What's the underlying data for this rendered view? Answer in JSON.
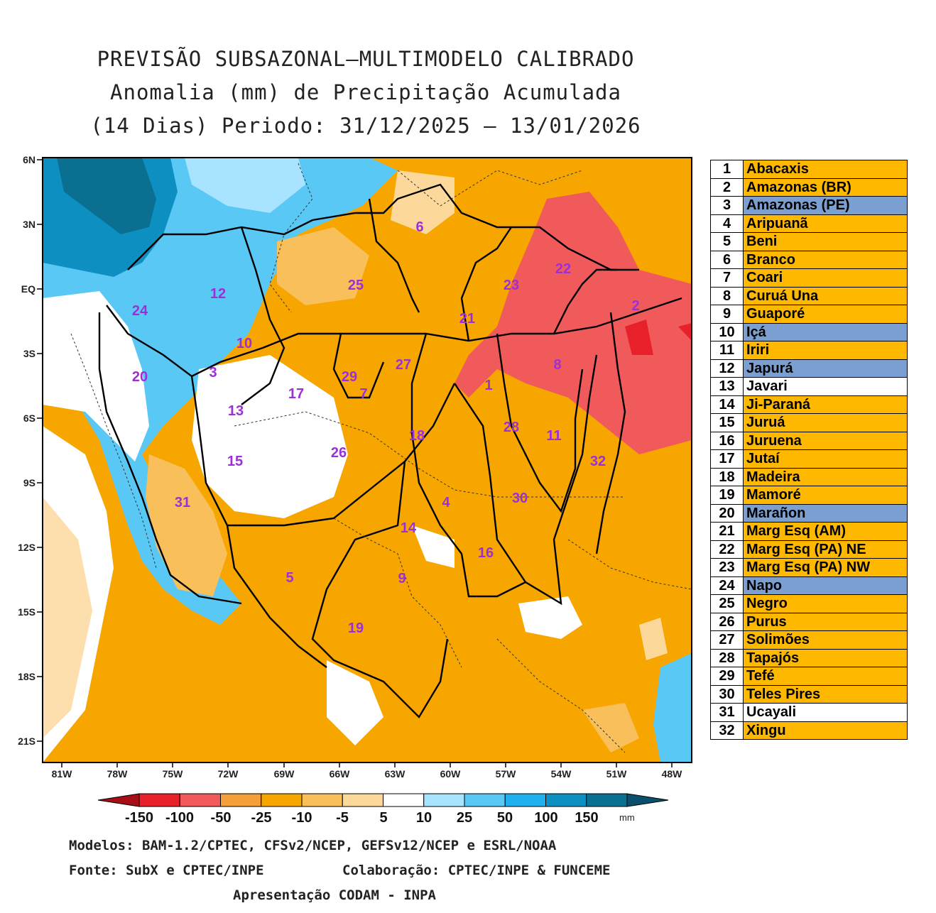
{
  "title": {
    "line1": "PREVISÃO SUBSAZONAL—MULTIMODELO CALIBRADO",
    "line2": "Anomalia (mm) de Precipitação Acumulada",
    "line3": "(14 Dias) Periodo: 31/12/2025 — 13/01/2026"
  },
  "axes": {
    "lat_labels": [
      "6N",
      "3N",
      "EQ",
      "3S",
      "6S",
      "9S",
      "12S",
      "15S",
      "18S",
      "21S"
    ],
    "lon_labels": [
      "81W",
      "78W",
      "75W",
      "72W",
      "69W",
      "66W",
      "63W",
      "60W",
      "57W",
      "54W",
      "51W",
      "48W"
    ]
  },
  "colorbar": {
    "labels": [
      "-150",
      "-100",
      "-50",
      "-25",
      "-10",
      "-5",
      "5",
      "10",
      "25",
      "50",
      "100",
      "150"
    ],
    "unit": "mm",
    "colors": [
      "#a50f15",
      "#e8202a",
      "#f05a5a",
      "#f59e3c",
      "#f7a600",
      "#f9bf5a",
      "#fcd89a",
      "#ffffff",
      "#a8e4ff",
      "#5ac8f5",
      "#1eb0f0",
      "#0d8fc2",
      "#0b6f92",
      "#0a4f6b"
    ]
  },
  "basins": [
    {
      "num": "1",
      "name": "Abacaxis",
      "color": "#ffb800"
    },
    {
      "num": "2",
      "name": "Amazonas (BR)",
      "color": "#ffb800"
    },
    {
      "num": "3",
      "name": "Amazonas (PE)",
      "color": "#7a9fd0"
    },
    {
      "num": "4",
      "name": "Aripuanã",
      "color": "#ffb800"
    },
    {
      "num": "5",
      "name": "Beni",
      "color": "#ffb800"
    },
    {
      "num": "6",
      "name": "Branco",
      "color": "#ffb800"
    },
    {
      "num": "7",
      "name": "Coari",
      "color": "#ffb800"
    },
    {
      "num": "8",
      "name": "Curuá Una",
      "color": "#ffb800"
    },
    {
      "num": "9",
      "name": "Guaporé",
      "color": "#ffb800"
    },
    {
      "num": "10",
      "name": "Içá",
      "color": "#7a9fd0"
    },
    {
      "num": "11",
      "name": "Iriri",
      "color": "#ffb800"
    },
    {
      "num": "12",
      "name": "Japurá",
      "color": "#7a9fd0"
    },
    {
      "num": "13",
      "name": "Javari",
      "color": "#ffffff"
    },
    {
      "num": "14",
      "name": "Ji-Paraná",
      "color": "#ffb800"
    },
    {
      "num": "15",
      "name": "Juruá",
      "color": "#ffb800"
    },
    {
      "num": "16",
      "name": "Juruena",
      "color": "#ffb800"
    },
    {
      "num": "17",
      "name": "Jutaí",
      "color": "#ffb800"
    },
    {
      "num": "18",
      "name": "Madeira",
      "color": "#ffb800"
    },
    {
      "num": "19",
      "name": "Mamoré",
      "color": "#ffb800"
    },
    {
      "num": "20",
      "name": "Marañon",
      "color": "#7a9fd0"
    },
    {
      "num": "21",
      "name": "Marg Esq (AM)",
      "color": "#ffb800"
    },
    {
      "num": "22",
      "name": "Marg Esq (PA) NE",
      "color": "#ffb800"
    },
    {
      "num": "23",
      "name": "Marg Esq (PA) NW",
      "color": "#ffb800"
    },
    {
      "num": "24",
      "name": "Napo",
      "color": "#7a9fd0"
    },
    {
      "num": "25",
      "name": "Negro",
      "color": "#ffb800"
    },
    {
      "num": "26",
      "name": "Purus",
      "color": "#ffb800"
    },
    {
      "num": "27",
      "name": "Solimões",
      "color": "#ffb800"
    },
    {
      "num": "28",
      "name": "Tapajós",
      "color": "#ffb800"
    },
    {
      "num": "29",
      "name": "Tefé",
      "color": "#ffb800"
    },
    {
      "num": "30",
      "name": "Teles Pires",
      "color": "#ffb800"
    },
    {
      "num": "31",
      "name": "Ucayali",
      "color": "#ffffff"
    },
    {
      "num": "32",
      "name": "Xingu",
      "color": "#ffb800"
    }
  ],
  "footer": {
    "models": "Modelos: BAM-1.2/CPTEC, CFSv2/NCEP, GEFSv12/NCEP e ESRL/NOAA",
    "source": "Fonte: SubX e CPTEC/INPE",
    "collab": "Colaboração: CPTEC/INPE & FUNCEME",
    "presentation": "Apresentação CODAM - INPA"
  }
}
